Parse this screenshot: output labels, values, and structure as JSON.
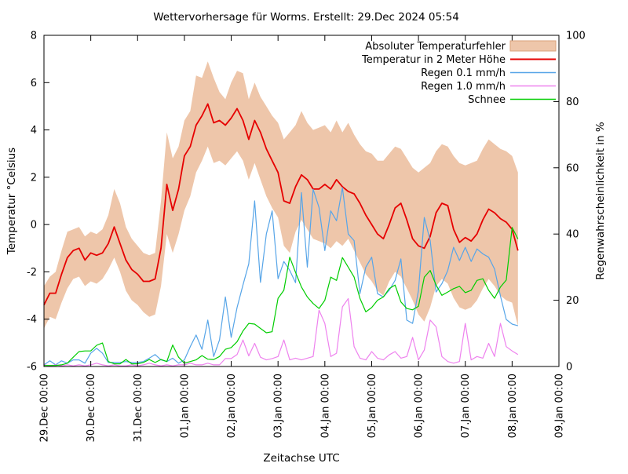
{
  "title": "Wettervorhersage für Worms. Erstellt: 29.Dec 2024 05:54",
  "axes": {
    "y_left": {
      "label": "Temperatur °Celsius",
      "min": -6,
      "max": 8,
      "ticks": [
        -6,
        -4,
        -2,
        0,
        2,
        4,
        6,
        8
      ]
    },
    "y_right": {
      "label": "Regenwahrscheinlichkeit in %",
      "min": 0,
      "max": 100,
      "ticks": [
        0,
        20,
        40,
        60,
        80,
        100
      ]
    },
    "x": {
      "label": "Zeitachse UTC",
      "tick_labels": [
        "29.Dec 00:00",
        "30.Dec 00:00",
        "31.Dec 00:00",
        "01.Jan 00:00",
        "02.Jan 00:00",
        "03.Jan 00:00",
        "04.Jan 00:00",
        "05.Jan 00:00",
        "06.Jan 00:00",
        "07.Jan 00:00",
        "08.Jan 00:00",
        "09.Jan 00:00"
      ]
    }
  },
  "legend": [
    {
      "label": "Absoluter Temperaturfehler",
      "type": "band",
      "color": "#eec6aa",
      "border": "#d9a27b"
    },
    {
      "label": "Temperatur in 2 Meter Höhe",
      "type": "line",
      "color": "#e60000"
    },
    {
      "label": "Regen 0.1 mm/h",
      "type": "line",
      "color": "#57a5e8"
    },
    {
      "label": "Regen 1.0 mm/h",
      "type": "line",
      "color": "#ee82ee"
    },
    {
      "label": "Schnee",
      "type": "line",
      "color": "#00cd00"
    }
  ],
  "chart_data": {
    "type": "line",
    "title": "Wettervorhersage für Worms. Erstellt: 29.Dec 2024 05:54",
    "xlabel": "Zeitachse UTC",
    "ylabel_left": "Temperatur °Celsius",
    "ylabel_right": "Regenwahrscheinlichkeit in %",
    "y_left_range": [
      -6,
      8
    ],
    "y_right_range": [
      0,
      100
    ],
    "x_axis_span_days": 11,
    "x_start_label": "29.Dec 00:00",
    "x_step_hours": 3,
    "grid": false,
    "legend_position": "top-right-inside",
    "series": [
      {
        "name": "Absoluter Temperaturfehler",
        "style": "band",
        "axis": "left",
        "color": "#eec6aa",
        "upper": [
          -2.6,
          -2.2,
          -2.0,
          -1.1,
          -0.3,
          -0.2,
          -0.1,
          -0.5,
          -0.3,
          -0.4,
          -0.2,
          0.4,
          1.5,
          0.9,
          -0.1,
          -0.6,
          -0.9,
          -1.2,
          -1.3,
          -1.2,
          1.0,
          3.9,
          2.8,
          3.3,
          4.4,
          4.8,
          6.3,
          6.2,
          6.9,
          6.2,
          5.6,
          5.3,
          6.0,
          6.5,
          6.4,
          5.3,
          6.0,
          5.4,
          5.0,
          4.6,
          4.3,
          3.6,
          3.9,
          4.2,
          4.8,
          4.3,
          4.0,
          4.1,
          4.2,
          3.9,
          4.4,
          3.9,
          4.3,
          3.8,
          3.4,
          3.1,
          3.0,
          2.7,
          2.7,
          3.0,
          3.3,
          3.2,
          2.8,
          2.4,
          2.2,
          2.4,
          2.6,
          3.1,
          3.4,
          3.3,
          2.9,
          2.6,
          2.5,
          2.6,
          2.7,
          3.2,
          3.6,
          3.4,
          3.2,
          3.1,
          2.9,
          2.2
        ],
        "lower": [
          -4.4,
          -3.9,
          -4.0,
          -3.3,
          -2.7,
          -2.3,
          -2.2,
          -2.6,
          -2.4,
          -2.5,
          -2.3,
          -1.9,
          -1.4,
          -2.0,
          -2.8,
          -3.2,
          -3.4,
          -3.7,
          -3.9,
          -3.8,
          -2.6,
          -0.4,
          -1.2,
          -0.4,
          0.6,
          1.2,
          2.2,
          2.7,
          3.3,
          2.6,
          2.7,
          2.5,
          2.8,
          3.1,
          2.7,
          1.9,
          2.6,
          1.9,
          1.2,
          0.7,
          0.3,
          -0.9,
          -1.2,
          -0.3,
          0.2,
          -0.2,
          -0.6,
          -0.7,
          -0.8,
          -1.0,
          -0.7,
          -0.9,
          -0.6,
          -1.1,
          -1.6,
          -2.1,
          -2.4,
          -2.8,
          -3.0,
          -2.4,
          -2.0,
          -2.2,
          -2.7,
          -3.2,
          -3.8,
          -4.1,
          -3.5,
          -2.6,
          -2.3,
          -2.5,
          -3.1,
          -3.5,
          -3.6,
          -3.5,
          -3.2,
          -2.7,
          -2.3,
          -2.6,
          -3.0,
          -3.2,
          -3.3,
          -4.3
        ]
      },
      {
        "name": "Temperatur in 2 Meter Höhe",
        "style": "line",
        "axis": "left",
        "color": "#e60000",
        "values": [
          -3.4,
          -2.9,
          -2.9,
          -2.1,
          -1.4,
          -1.1,
          -1.0,
          -1.5,
          -1.2,
          -1.3,
          -1.2,
          -0.8,
          -0.1,
          -0.8,
          -1.5,
          -1.9,
          -2.1,
          -2.4,
          -2.4,
          -2.3,
          -1.0,
          1.7,
          0.6,
          1.5,
          2.9,
          3.3,
          4.2,
          4.6,
          5.1,
          4.3,
          4.4,
          4.2,
          4.5,
          4.9,
          4.4,
          3.6,
          4.4,
          3.9,
          3.2,
          2.7,
          2.2,
          1.0,
          0.9,
          1.6,
          2.1,
          1.9,
          1.5,
          1.5,
          1.7,
          1.5,
          1.9,
          1.6,
          1.4,
          1.3,
          0.9,
          0.4,
          0.0,
          -0.4,
          -0.6,
          0.0,
          0.7,
          0.9,
          0.2,
          -0.6,
          -0.9,
          -1.0,
          -0.5,
          0.5,
          0.9,
          0.8,
          -0.2,
          -0.75,
          -0.55,
          -0.7,
          -0.4,
          0.2,
          0.65,
          0.5,
          0.25,
          0.1,
          -0.2,
          -1.1
        ]
      },
      {
        "name": "Regen 0.1 mm/h",
        "style": "line",
        "axis": "right",
        "color": "#57a5e8",
        "values": [
          0.5,
          1.7,
          0.5,
          1.7,
          1.0,
          2.0,
          2.0,
          1.0,
          4.0,
          5.5,
          4.0,
          1.2,
          1.2,
          1.2,
          1.5,
          1.2,
          1.2,
          1.5,
          2.5,
          3.6,
          2.0,
          1.5,
          2.5,
          1.0,
          2.0,
          6.0,
          9.5,
          5.2,
          14.0,
          3.0,
          8.0,
          21.0,
          8.8,
          17.8,
          24.6,
          31.0,
          50.0,
          25.4,
          40.0,
          47.0,
          26.5,
          31.7,
          29.0,
          25.3,
          52.5,
          30.0,
          53.5,
          48.0,
          35.0,
          47.0,
          44.0,
          54.0,
          40.0,
          38.0,
          22.0,
          30.0,
          33.0,
          22.0,
          21.0,
          23.0,
          26.0,
          32.5,
          14.0,
          13.0,
          23.0,
          45.0,
          38.0,
          22.5,
          25.0,
          29.0,
          36.0,
          32.0,
          36.0,
          31.7,
          35.5,
          34.0,
          33.0,
          29.4,
          21.3,
          14.2,
          12.8,
          12.3
        ]
      },
      {
        "name": "Regen 1.0 mm/h",
        "style": "line",
        "axis": "right",
        "color": "#ee82ee",
        "values": [
          0.5,
          0.2,
          0.5,
          0.2,
          0.5,
          0.2,
          0.5,
          0.2,
          0.5,
          1.0,
          0.5,
          0.2,
          0.5,
          0.2,
          0.2,
          0.5,
          0.2,
          0.5,
          1.0,
          0.5,
          0.2,
          0.5,
          0.2,
          0.5,
          0.5,
          1.0,
          0.5,
          0.5,
          1.0,
          0.5,
          0.5,
          2.4,
          2.4,
          3.6,
          8.0,
          3.2,
          7.0,
          2.8,
          2.0,
          2.4,
          3.0,
          8.0,
          2.0,
          2.5,
          2.0,
          2.5,
          3.0,
          17.0,
          13.0,
          3.0,
          4.0,
          18.0,
          20.5,
          6.0,
          2.5,
          2.0,
          4.5,
          2.5,
          2.0,
          3.5,
          4.5,
          2.5,
          3.0,
          8.8,
          2.0,
          5.0,
          14.0,
          12.0,
          3.0,
          1.5,
          1.0,
          1.5,
          13.0,
          2.0,
          3.0,
          2.5,
          7.0,
          3.0,
          13.0,
          6.0,
          4.7,
          3.6
        ]
      },
      {
        "name": "Schnee",
        "style": "line",
        "axis": "right",
        "color": "#00cd00",
        "values": [
          0.3,
          0.3,
          0.3,
          0.5,
          1.0,
          2.8,
          4.5,
          4.7,
          4.7,
          6.4,
          7.1,
          1.5,
          0.8,
          0.8,
          2.1,
          0.8,
          0.8,
          1.2,
          2.1,
          1.2,
          2.1,
          1.5,
          6.5,
          2.8,
          1.0,
          1.5,
          2.0,
          3.3,
          2.2,
          2.1,
          3.0,
          5.2,
          5.7,
          7.5,
          10.7,
          13.0,
          12.8,
          11.5,
          10.2,
          10.5,
          20.6,
          23.0,
          33.0,
          28.4,
          24.0,
          21.0,
          19.0,
          17.5,
          20.0,
          27.0,
          26.0,
          32.9,
          30.0,
          27.0,
          20.6,
          16.5,
          17.8,
          20.0,
          21.0,
          23.5,
          24.6,
          19.5,
          17.5,
          17.1,
          18.2,
          27.0,
          29.0,
          24.6,
          21.5,
          22.5,
          23.5,
          24.2,
          22.3,
          23.0,
          26.0,
          26.5,
          23.0,
          20.6,
          24.0,
          26.1,
          42.0,
          38.5
        ]
      }
    ]
  }
}
